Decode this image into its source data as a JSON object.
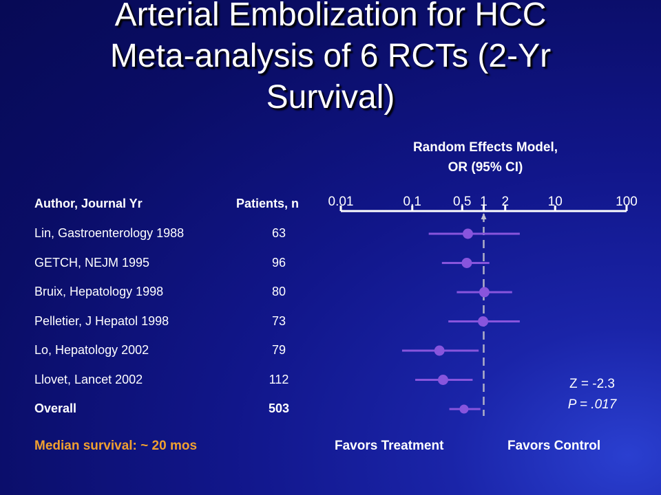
{
  "title": {
    "line1": "Arterial Embolization for HCC",
    "line2": "Meta-analysis of 6 RCTs (2-Yr",
    "line3": "Survival)"
  },
  "model_title": {
    "line1": "Random Effects Model,",
    "line2": "OR (95% CI)"
  },
  "table": {
    "author_header": "Author, Journal Yr",
    "patients_header": "Patients, n"
  },
  "median_note": "Median survival: ~ 20 mos",
  "favors": {
    "left": "Favors Treatment",
    "right": "Favors Control"
  },
  "stats": {
    "z": "Z = -2.3",
    "p": "P = .017"
  },
  "colors": {
    "marker": "#8855dd",
    "axis": "#ffffff",
    "median_note": "#f0a030"
  },
  "chart_data": {
    "type": "forest",
    "x_scale": "log",
    "xlim": [
      0.01,
      100
    ],
    "x_ticks": [
      {
        "value": 0.01,
        "label": "0.01"
      },
      {
        "value": 0.1,
        "label": "0.1"
      },
      {
        "value": 0.5,
        "label": "0.5"
      },
      {
        "value": 1,
        "label": "1"
      },
      {
        "value": 2,
        "label": "2"
      },
      {
        "value": 10,
        "label": "10"
      },
      {
        "value": 100,
        "label": "100"
      }
    ],
    "reference_line": 1,
    "studies": [
      {
        "label": "Lin, Gastroenterology 1988",
        "patients": "63",
        "or": 0.6,
        "ci_low": 0.17,
        "ci_high": 3.2,
        "bold": false
      },
      {
        "label": "GETCH, NEJM 1995",
        "patients": "96",
        "or": 0.58,
        "ci_low": 0.26,
        "ci_high": 1.2,
        "bold": false
      },
      {
        "label": "Bruix, Hepatology 1998",
        "patients": "80",
        "or": 1.02,
        "ci_low": 0.42,
        "ci_high": 2.5,
        "bold": false
      },
      {
        "label": "Pelletier, J Hepatol 1998",
        "patients": "73",
        "or": 0.98,
        "ci_low": 0.32,
        "ci_high": 3.2,
        "bold": false
      },
      {
        "label": "Lo, Hepatology 2002",
        "patients": "79",
        "or": 0.24,
        "ci_low": 0.072,
        "ci_high": 0.85,
        "bold": false
      },
      {
        "label": "Llovet, Lancet 2002",
        "patients": "112",
        "or": 0.27,
        "ci_low": 0.11,
        "ci_high": 0.7,
        "bold": false
      },
      {
        "label": "Overall",
        "patients": "503",
        "or": 0.53,
        "ci_low": 0.33,
        "ci_high": 0.9,
        "bold": true
      }
    ]
  }
}
